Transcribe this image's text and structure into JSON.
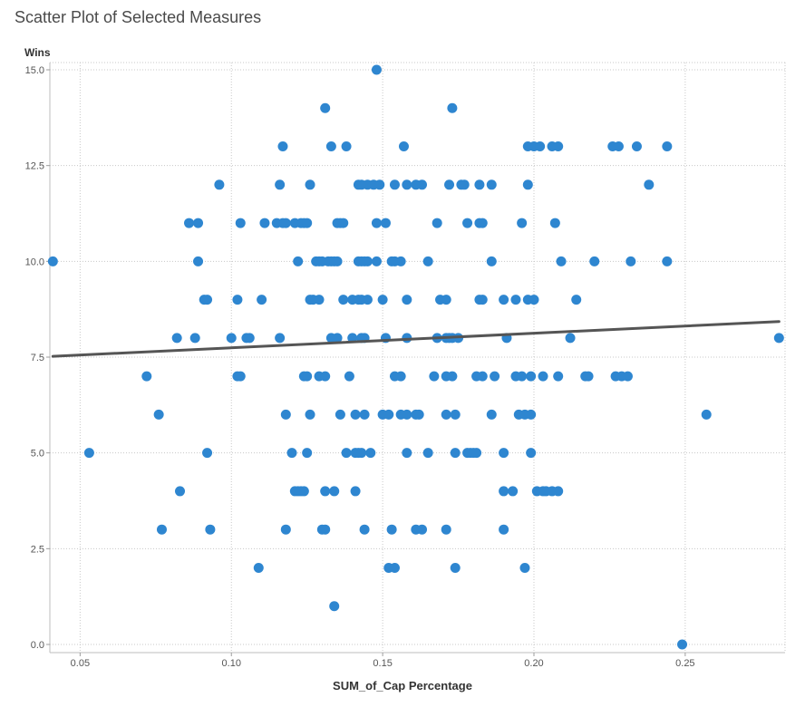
{
  "chart_data": {
    "type": "scatter",
    "title": "Scatter Plot of Selected Measures",
    "xlabel": "SUM_of_Cap Percentage",
    "ylabel": "Wins",
    "xlim": [
      0.04,
      0.283
    ],
    "ylim": [
      0,
      15
    ],
    "x_ticks": [
      0.05,
      0.1,
      0.15,
      0.2,
      0.25
    ],
    "x_tick_labels": [
      "0.05",
      "0.10",
      "0.15",
      "0.20",
      "0.25"
    ],
    "y_ticks": [
      0,
      2.5,
      5,
      7.5,
      10,
      12.5,
      15
    ],
    "y_tick_labels": [
      "0.0",
      "2.5",
      "5.0",
      "7.5",
      "10.0",
      "12.5",
      "15.0"
    ],
    "grid": true,
    "marker_color": "#2e86d0",
    "trend_color": "#555555",
    "trendline": {
      "x": [
        0.041,
        0.281
      ],
      "y": [
        7.52,
        8.43
      ]
    },
    "points": [
      [
        0.148,
        15
      ],
      [
        0.131,
        14
      ],
      [
        0.173,
        14
      ],
      [
        0.117,
        13
      ],
      [
        0.133,
        13
      ],
      [
        0.138,
        13
      ],
      [
        0.157,
        13
      ],
      [
        0.198,
        13
      ],
      [
        0.2,
        13
      ],
      [
        0.202,
        13
      ],
      [
        0.206,
        13
      ],
      [
        0.208,
        13
      ],
      [
        0.226,
        13
      ],
      [
        0.228,
        13
      ],
      [
        0.234,
        13
      ],
      [
        0.244,
        13
      ],
      [
        0.096,
        12
      ],
      [
        0.116,
        12
      ],
      [
        0.126,
        12
      ],
      [
        0.142,
        12
      ],
      [
        0.143,
        12
      ],
      [
        0.145,
        12
      ],
      [
        0.147,
        12
      ],
      [
        0.149,
        12
      ],
      [
        0.154,
        12
      ],
      [
        0.158,
        12
      ],
      [
        0.161,
        12
      ],
      [
        0.163,
        12
      ],
      [
        0.172,
        12
      ],
      [
        0.176,
        12
      ],
      [
        0.177,
        12
      ],
      [
        0.182,
        12
      ],
      [
        0.186,
        12
      ],
      [
        0.198,
        12
      ],
      [
        0.238,
        12
      ],
      [
        0.086,
        11
      ],
      [
        0.089,
        11
      ],
      [
        0.103,
        11
      ],
      [
        0.111,
        11
      ],
      [
        0.115,
        11
      ],
      [
        0.117,
        11
      ],
      [
        0.118,
        11
      ],
      [
        0.121,
        11
      ],
      [
        0.123,
        11
      ],
      [
        0.124,
        11
      ],
      [
        0.125,
        11
      ],
      [
        0.135,
        11
      ],
      [
        0.136,
        11
      ],
      [
        0.137,
        11
      ],
      [
        0.148,
        11
      ],
      [
        0.151,
        11
      ],
      [
        0.168,
        11
      ],
      [
        0.178,
        11
      ],
      [
        0.182,
        11
      ],
      [
        0.183,
        11
      ],
      [
        0.196,
        11
      ],
      [
        0.207,
        11
      ],
      [
        0.041,
        10
      ],
      [
        0.089,
        10
      ],
      [
        0.122,
        10
      ],
      [
        0.128,
        10
      ],
      [
        0.129,
        10
      ],
      [
        0.13,
        10
      ],
      [
        0.132,
        10
      ],
      [
        0.133,
        10
      ],
      [
        0.134,
        10
      ],
      [
        0.135,
        10
      ],
      [
        0.142,
        10
      ],
      [
        0.143,
        10
      ],
      [
        0.144,
        10
      ],
      [
        0.145,
        10
      ],
      [
        0.148,
        10
      ],
      [
        0.153,
        10
      ],
      [
        0.154,
        10
      ],
      [
        0.156,
        10
      ],
      [
        0.165,
        10
      ],
      [
        0.186,
        10
      ],
      [
        0.209,
        10
      ],
      [
        0.22,
        10
      ],
      [
        0.232,
        10
      ],
      [
        0.244,
        10
      ],
      [
        0.091,
        9
      ],
      [
        0.092,
        9
      ],
      [
        0.102,
        9
      ],
      [
        0.11,
        9
      ],
      [
        0.126,
        9
      ],
      [
        0.127,
        9
      ],
      [
        0.129,
        9
      ],
      [
        0.137,
        9
      ],
      [
        0.14,
        9
      ],
      [
        0.142,
        9
      ],
      [
        0.143,
        9
      ],
      [
        0.145,
        9
      ],
      [
        0.15,
        9
      ],
      [
        0.158,
        9
      ],
      [
        0.169,
        9
      ],
      [
        0.171,
        9
      ],
      [
        0.182,
        9
      ],
      [
        0.183,
        9
      ],
      [
        0.19,
        9
      ],
      [
        0.194,
        9
      ],
      [
        0.198,
        9
      ],
      [
        0.2,
        9
      ],
      [
        0.214,
        9
      ],
      [
        0.082,
        8
      ],
      [
        0.088,
        8
      ],
      [
        0.1,
        8
      ],
      [
        0.105,
        8
      ],
      [
        0.106,
        8
      ],
      [
        0.116,
        8
      ],
      [
        0.133,
        8
      ],
      [
        0.135,
        8
      ],
      [
        0.14,
        8
      ],
      [
        0.143,
        8
      ],
      [
        0.144,
        8
      ],
      [
        0.151,
        8
      ],
      [
        0.158,
        8
      ],
      [
        0.168,
        8
      ],
      [
        0.171,
        8
      ],
      [
        0.172,
        8
      ],
      [
        0.173,
        8
      ],
      [
        0.175,
        8
      ],
      [
        0.191,
        8
      ],
      [
        0.212,
        8
      ],
      [
        0.281,
        8
      ],
      [
        0.072,
        7
      ],
      [
        0.102,
        7
      ],
      [
        0.103,
        7
      ],
      [
        0.124,
        7
      ],
      [
        0.125,
        7
      ],
      [
        0.129,
        7
      ],
      [
        0.131,
        7
      ],
      [
        0.139,
        7
      ],
      [
        0.154,
        7
      ],
      [
        0.156,
        7
      ],
      [
        0.167,
        7
      ],
      [
        0.171,
        7
      ],
      [
        0.173,
        7
      ],
      [
        0.181,
        7
      ],
      [
        0.183,
        7
      ],
      [
        0.187,
        7
      ],
      [
        0.194,
        7
      ],
      [
        0.196,
        7
      ],
      [
        0.199,
        7
      ],
      [
        0.203,
        7
      ],
      [
        0.208,
        7
      ],
      [
        0.217,
        7
      ],
      [
        0.218,
        7
      ],
      [
        0.227,
        7
      ],
      [
        0.229,
        7
      ],
      [
        0.231,
        7
      ],
      [
        0.076,
        6
      ],
      [
        0.118,
        6
      ],
      [
        0.126,
        6
      ],
      [
        0.136,
        6
      ],
      [
        0.141,
        6
      ],
      [
        0.144,
        6
      ],
      [
        0.15,
        6
      ],
      [
        0.152,
        6
      ],
      [
        0.156,
        6
      ],
      [
        0.158,
        6
      ],
      [
        0.161,
        6
      ],
      [
        0.162,
        6
      ],
      [
        0.171,
        6
      ],
      [
        0.174,
        6
      ],
      [
        0.186,
        6
      ],
      [
        0.195,
        6
      ],
      [
        0.197,
        6
      ],
      [
        0.199,
        6
      ],
      [
        0.257,
        6
      ],
      [
        0.053,
        5
      ],
      [
        0.092,
        5
      ],
      [
        0.12,
        5
      ],
      [
        0.125,
        5
      ],
      [
        0.138,
        5
      ],
      [
        0.141,
        5
      ],
      [
        0.142,
        5
      ],
      [
        0.143,
        5
      ],
      [
        0.146,
        5
      ],
      [
        0.158,
        5
      ],
      [
        0.165,
        5
      ],
      [
        0.174,
        5
      ],
      [
        0.178,
        5
      ],
      [
        0.179,
        5
      ],
      [
        0.18,
        5
      ],
      [
        0.181,
        5
      ],
      [
        0.19,
        5
      ],
      [
        0.199,
        5
      ],
      [
        0.083,
        4
      ],
      [
        0.121,
        4
      ],
      [
        0.122,
        4
      ],
      [
        0.123,
        4
      ],
      [
        0.124,
        4
      ],
      [
        0.131,
        4
      ],
      [
        0.134,
        4
      ],
      [
        0.141,
        4
      ],
      [
        0.19,
        4
      ],
      [
        0.193,
        4
      ],
      [
        0.201,
        4
      ],
      [
        0.203,
        4
      ],
      [
        0.204,
        4
      ],
      [
        0.206,
        4
      ],
      [
        0.208,
        4
      ],
      [
        0.077,
        3
      ],
      [
        0.093,
        3
      ],
      [
        0.118,
        3
      ],
      [
        0.13,
        3
      ],
      [
        0.131,
        3
      ],
      [
        0.144,
        3
      ],
      [
        0.153,
        3
      ],
      [
        0.161,
        3
      ],
      [
        0.163,
        3
      ],
      [
        0.171,
        3
      ],
      [
        0.19,
        3
      ],
      [
        0.109,
        2
      ],
      [
        0.152,
        2
      ],
      [
        0.154,
        2
      ],
      [
        0.174,
        2
      ],
      [
        0.197,
        2
      ],
      [
        0.134,
        1
      ],
      [
        0.249,
        0
      ]
    ]
  }
}
